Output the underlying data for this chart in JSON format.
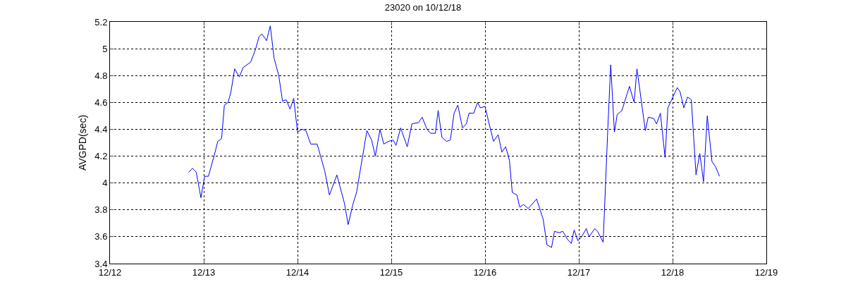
{
  "chart_data": {
    "type": "line",
    "title": "23020 on 10/12/18",
    "ylabel": "AVGPD(sec)",
    "x": [
      "--12-12T20:10",
      "--12-12T21:07",
      "--12-12T22:05",
      "--12-12T23:17",
      "--12-13T00:14",
      "--12-13T01:12",
      "--12-13T02:38",
      "--12-13T03:36",
      "--12-13T04:34",
      "--12-13T05:17",
      "--12-13T06:14",
      "--12-13T06:58",
      "--12-13T07:55",
      "--12-13T09:07",
      "--12-13T10:05",
      "--12-13T12:00",
      "--12-13T13:12",
      "--12-13T14:10",
      "--12-13T14:53",
      "--12-13T16:05",
      "--12-13T17:02",
      "--12-13T18:00",
      "--12-13T19:12",
      "--12-13T20:10",
      "--12-13T21:07",
      "--12-13T22:05",
      "--12-13T23:02",
      "--12-14T00:00",
      "--12-14T01:12",
      "--12-14T02:10",
      "--12-14T03:22",
      "--12-14T05:02",
      "--12-14T06:58",
      "--12-14T08:10",
      "--12-14T10:05",
      "--12-14T12:00",
      "--12-14T12:58",
      "--12-14T14:10",
      "--12-14T15:07",
      "--12-14T17:46",
      "--12-14T18:58",
      "--12-14T19:55",
      "--12-14T21:07",
      "--12-14T22:05",
      "--12-14T23:17",
      "--12-15T00:29",
      "--12-15T01:12",
      "--12-15T02:24",
      "--12-15T04:05",
      "--12-15T05:17",
      "--12-15T06:58",
      "--12-15T07:55",
      "--12-15T09:07",
      "--12-15T10:05",
      "--12-15T11:17",
      "--12-15T12:00",
      "--12-15T12:58",
      "--12-15T14:10",
      "--12-15T15:07",
      "--12-15T16:05",
      "--12-15T17:02",
      "--12-15T18:14",
      "--12-15T19:12",
      "--12-15T19:55",
      "--12-15T21:07",
      "--12-15T22:05",
      "--12-15T22:48",
      "--12-16T00:00",
      "--12-16T00:58",
      "--12-16T02:10",
      "--12-16T03:22",
      "--12-16T04:19",
      "--12-16T05:17",
      "--12-16T06:14",
      "--12-16T06:58",
      "--12-16T08:10",
      "--12-16T08:53",
      "--12-16T09:50",
      "--12-16T11:02",
      "--12-16T13:12",
      "--12-16T14:53",
      "--12-16T15:50",
      "--12-16T17:02",
      "--12-16T17:46",
      "--12-16T18:58",
      "--12-16T19:55",
      "--12-16T21:07",
      "--12-16T22:05",
      "--12-16T22:48",
      "--12-16T23:46",
      "--12-17T00:43",
      "--12-17T01:55",
      "--12-17T02:38",
      "--12-17T04:05",
      "--12-17T04:48",
      "--12-17T06:14",
      "--12-17T07:26",
      "--12-17T08:10",
      "--12-17T09:07",
      "--12-17T09:50",
      "--12-17T11:02",
      "--12-17T12:58",
      "--12-17T14:10",
      "--12-17T14:53",
      "--12-17T17:02",
      "--12-17T17:46",
      "--12-17T19:12",
      "--12-17T19:55",
      "--12-17T20:53",
      "--12-17T22:05",
      "--12-17T22:48",
      "--12-18T00:14",
      "--12-18T01:12",
      "--12-18T01:55",
      "--12-18T02:53",
      "--12-18T03:50",
      "--12-18T04:48",
      "--12-18T06:00",
      "--12-18T06:58",
      "--12-18T07:55",
      "--12-18T08:53",
      "--12-18T10:05",
      "--12-18T11:02",
      "--12-18T12:00"
    ],
    "series": [
      {
        "color": "#0000ff",
        "values": [
          4.08,
          4.11,
          4.08,
          3.89,
          4.05,
          4.05,
          4.2,
          4.31,
          4.33,
          4.58,
          4.6,
          4.68,
          4.85,
          4.79,
          4.86,
          4.9,
          4.99,
          5.09,
          5.11,
          5.06,
          5.17,
          4.93,
          4.8,
          4.61,
          4.62,
          4.55,
          4.63,
          4.38,
          4.4,
          4.39,
          4.29,
          4.29,
          4.09,
          3.91,
          4.06,
          3.85,
          3.69,
          3.84,
          3.93,
          4.39,
          4.32,
          4.2,
          4.4,
          4.29,
          4.31,
          4.32,
          4.28,
          4.41,
          4.27,
          4.44,
          4.45,
          4.49,
          4.4,
          4.37,
          4.37,
          4.54,
          4.34,
          4.31,
          4.32,
          4.52,
          4.58,
          4.41,
          4.44,
          4.52,
          4.52,
          4.6,
          4.56,
          4.57,
          4.45,
          4.31,
          4.36,
          4.23,
          4.27,
          4.17,
          3.93,
          3.91,
          3.82,
          3.84,
          3.81,
          3.88,
          3.73,
          3.54,
          3.52,
          3.64,
          3.63,
          3.64,
          3.58,
          3.55,
          3.65,
          3.57,
          3.6,
          3.66,
          3.6,
          3.66,
          3.64,
          3.56,
          4.41,
          4.88,
          4.38,
          4.51,
          4.54,
          4.72,
          4.6,
          4.85,
          4.39,
          4.49,
          4.48,
          4.44,
          4.52,
          4.19,
          4.56,
          4.65,
          4.71,
          4.68,
          4.56,
          4.64,
          4.62,
          4.06,
          4.22,
          4.01,
          4.5,
          4.16,
          4.12,
          4.05
        ]
      }
    ],
    "xlim": [
      "--12-12",
      "--12-19"
    ],
    "xticks": [
      {
        "value": "--12-12",
        "label": "12/12"
      },
      {
        "value": "--12-13",
        "label": "12/13"
      },
      {
        "value": "--12-14",
        "label": "12/14"
      },
      {
        "value": "--12-15",
        "label": "12/15"
      },
      {
        "value": "--12-16",
        "label": "12/16"
      },
      {
        "value": "--12-17",
        "label": "12/17"
      },
      {
        "value": "--12-18",
        "label": "12/18"
      },
      {
        "value": "--12-19",
        "label": "12/19"
      }
    ],
    "ylim": [
      3.4,
      5.2
    ],
    "yticks": [
      3.4,
      3.6,
      3.8,
      4,
      4.2,
      4.4,
      4.6,
      4.8,
      5,
      5.2
    ],
    "grid": true
  }
}
